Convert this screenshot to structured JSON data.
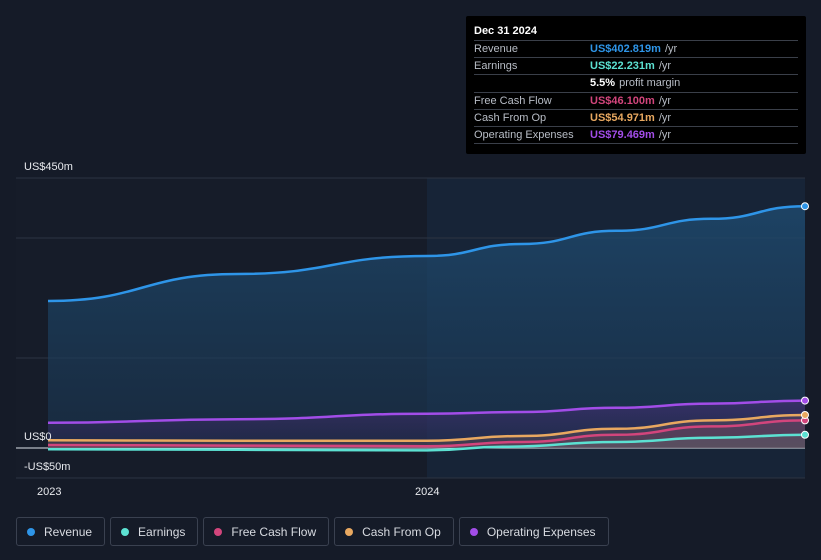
{
  "chart_data": {
    "type": "area",
    "x_ticks": [
      "2023",
      "2024"
    ],
    "y_ticks": [
      "US$450m",
      "US$0",
      "-US$50m"
    ],
    "ylim": [
      -50,
      450
    ],
    "series": [
      {
        "name": "Revenue",
        "color": "#2e95e8",
        "points": [
          [
            2023.0,
            245
          ],
          [
            2023.5,
            290
          ],
          [
            2024.0,
            320
          ],
          [
            2024.25,
            340
          ],
          [
            2024.5,
            362
          ],
          [
            2024.75,
            382
          ],
          [
            2024.97,
            403
          ]
        ]
      },
      {
        "name": "Earnings",
        "color": "#5ce1d2",
        "points": [
          [
            2023.0,
            -2
          ],
          [
            2023.5,
            -3
          ],
          [
            2024.0,
            -4
          ],
          [
            2024.2,
            2
          ],
          [
            2024.5,
            10
          ],
          [
            2024.75,
            17
          ],
          [
            2024.97,
            22
          ]
        ]
      },
      {
        "name": "Free Cash Flow",
        "color": "#d2457c",
        "points": [
          [
            2023.0,
            5
          ],
          [
            2023.5,
            4
          ],
          [
            2024.0,
            3
          ],
          [
            2024.25,
            10
          ],
          [
            2024.5,
            22
          ],
          [
            2024.75,
            36
          ],
          [
            2024.97,
            46
          ]
        ]
      },
      {
        "name": "Cash From Op",
        "color": "#e8a860",
        "points": [
          [
            2023.0,
            13
          ],
          [
            2023.5,
            12
          ],
          [
            2024.0,
            12
          ],
          [
            2024.25,
            20
          ],
          [
            2024.5,
            32
          ],
          [
            2024.75,
            46
          ],
          [
            2024.97,
            55
          ]
        ]
      },
      {
        "name": "Operating Expenses",
        "color": "#a24de8",
        "points": [
          [
            2023.0,
            42
          ],
          [
            2023.5,
            48
          ],
          [
            2024.0,
            57
          ],
          [
            2024.25,
            60
          ],
          [
            2024.5,
            67
          ],
          [
            2024.75,
            74
          ],
          [
            2024.97,
            79
          ]
        ]
      }
    ],
    "grid": true,
    "legend": "bottom"
  },
  "tooltip": {
    "date": "Dec 31 2024",
    "rows": [
      {
        "label": "Revenue",
        "value": "US$402.819m",
        "unit": "/yr",
        "color": "#2e95e8"
      },
      {
        "label": "Earnings",
        "value": "US$22.231m",
        "unit": "/yr",
        "color": "#5ce1d2"
      },
      {
        "label": "",
        "value": "5.5%",
        "unit": "profit margin",
        "color": "#ffffff"
      },
      {
        "label": "Free Cash Flow",
        "value": "US$46.100m",
        "unit": "/yr",
        "color": "#d2457c"
      },
      {
        "label": "Cash From Op",
        "value": "US$54.971m",
        "unit": "/yr",
        "color": "#e8a860"
      },
      {
        "label": "Operating Expenses",
        "value": "US$79.469m",
        "unit": "/yr",
        "color": "#a24de8"
      }
    ]
  },
  "legend": [
    {
      "label": "Revenue",
      "color": "#2e95e8"
    },
    {
      "label": "Earnings",
      "color": "#5ce1d2"
    },
    {
      "label": "Free Cash Flow",
      "color": "#d2457c"
    },
    {
      "label": "Cash From Op",
      "color": "#e8a860"
    },
    {
      "label": "Operating Expenses",
      "color": "#a24de8"
    }
  ]
}
